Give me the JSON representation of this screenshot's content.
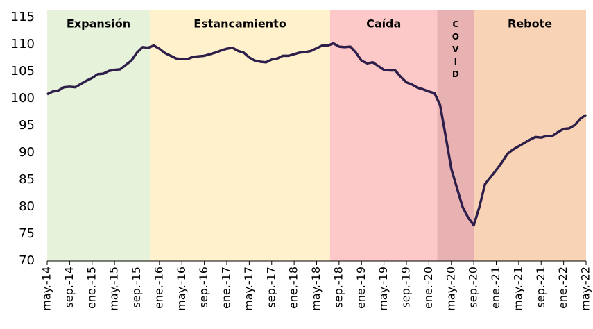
{
  "chart_data": {
    "type": "line",
    "categories": [
      "may.-14",
      null,
      null,
      null,
      "sep.-14",
      null,
      null,
      null,
      "ene.-15",
      null,
      null,
      null,
      "may.-15",
      null,
      null,
      null,
      "sep.-15",
      null,
      null,
      null,
      "ene.-16",
      null,
      null,
      null,
      "may.-16",
      null,
      null,
      null,
      "sep.-16",
      null,
      null,
      null,
      "ene.-17",
      null,
      null,
      null,
      "may.-17",
      null,
      null,
      null,
      "sep.-17",
      null,
      null,
      null,
      "ene.-18",
      null,
      null,
      null,
      "may.-18",
      null,
      null,
      null,
      "sep.-18",
      null,
      null,
      null,
      "ene.-19",
      null,
      null,
      null,
      "may.-19",
      null,
      null,
      null,
      "sep.-19",
      null,
      null,
      null,
      "ene.-20",
      null,
      null,
      null,
      "may.-20",
      null,
      null,
      null,
      "sep.-20",
      null,
      null,
      null,
      "ene.-21",
      null,
      null,
      null,
      "may.-21",
      null,
      null,
      null,
      "sep.-21",
      null,
      null,
      null,
      "ene.-22",
      null,
      null,
      null,
      "may.-22"
    ],
    "values": [
      100.8,
      101.3,
      101.5,
      102.1,
      102.2,
      102.1,
      102.7,
      103.3,
      103.8,
      104.5,
      104.6,
      105.1,
      105.3,
      105.4,
      106.2,
      107.0,
      108.5,
      109.5,
      109.4,
      109.8,
      109.2,
      108.4,
      107.9,
      107.4,
      107.3,
      107.3,
      107.7,
      107.8,
      107.9,
      108.2,
      108.5,
      108.9,
      109.2,
      109.4,
      108.8,
      108.5,
      107.6,
      107.0,
      106.8,
      106.7,
      107.2,
      107.4,
      107.9,
      107.9,
      108.2,
      108.5,
      108.6,
      108.8,
      109.3,
      109.8,
      109.8,
      110.2,
      109.6,
      109.5,
      109.6,
      108.5,
      107.0,
      106.5,
      106.7,
      106.0,
      105.3,
      105.2,
      105.2,
      104.0,
      103.0,
      102.6,
      102.0,
      101.7,
      101.3,
      101.0,
      98.8,
      93.0,
      87.0,
      83.5,
      80.0,
      78.0,
      76.6,
      80.0,
      84.2,
      85.5,
      86.8,
      88.2,
      89.8,
      90.6,
      91.2,
      91.8,
      92.4,
      92.9,
      92.8,
      93.1,
      93.1,
      93.8,
      94.4,
      94.5,
      95.1,
      96.3,
      97.0
    ],
    "color": "#2e1f4a",
    "ylim": [
      70,
      115
    ],
    "yticks": [
      70,
      75,
      80,
      85,
      90,
      95,
      100,
      105,
      110,
      115
    ],
    "grid": false,
    "regions": [
      {
        "label": "Expansión",
        "start": 0,
        "end": 18.3,
        "color": "#e6f2da",
        "label_color": "#4f6228",
        "vertical": false
      },
      {
        "label": "Estancamiento",
        "start": 18.3,
        "end": 50.4,
        "color": "#fef1cc",
        "label_color": "#c9a100",
        "vertical": false
      },
      {
        "label": "Caída",
        "start": 50.4,
        "end": 69.5,
        "color": "#fdc8c8",
        "label_color": "#ff0000",
        "vertical": false
      },
      {
        "label": "COVID",
        "start": 69.5,
        "end": 76,
        "color": "#e8b2b2",
        "label_color": "#c00000",
        "vertical": true
      },
      {
        "label": "Rebote",
        "start": 76,
        "end": 96,
        "color": "#f8d3b5",
        "label_color": "#e46c0a",
        "vertical": false
      }
    ]
  }
}
